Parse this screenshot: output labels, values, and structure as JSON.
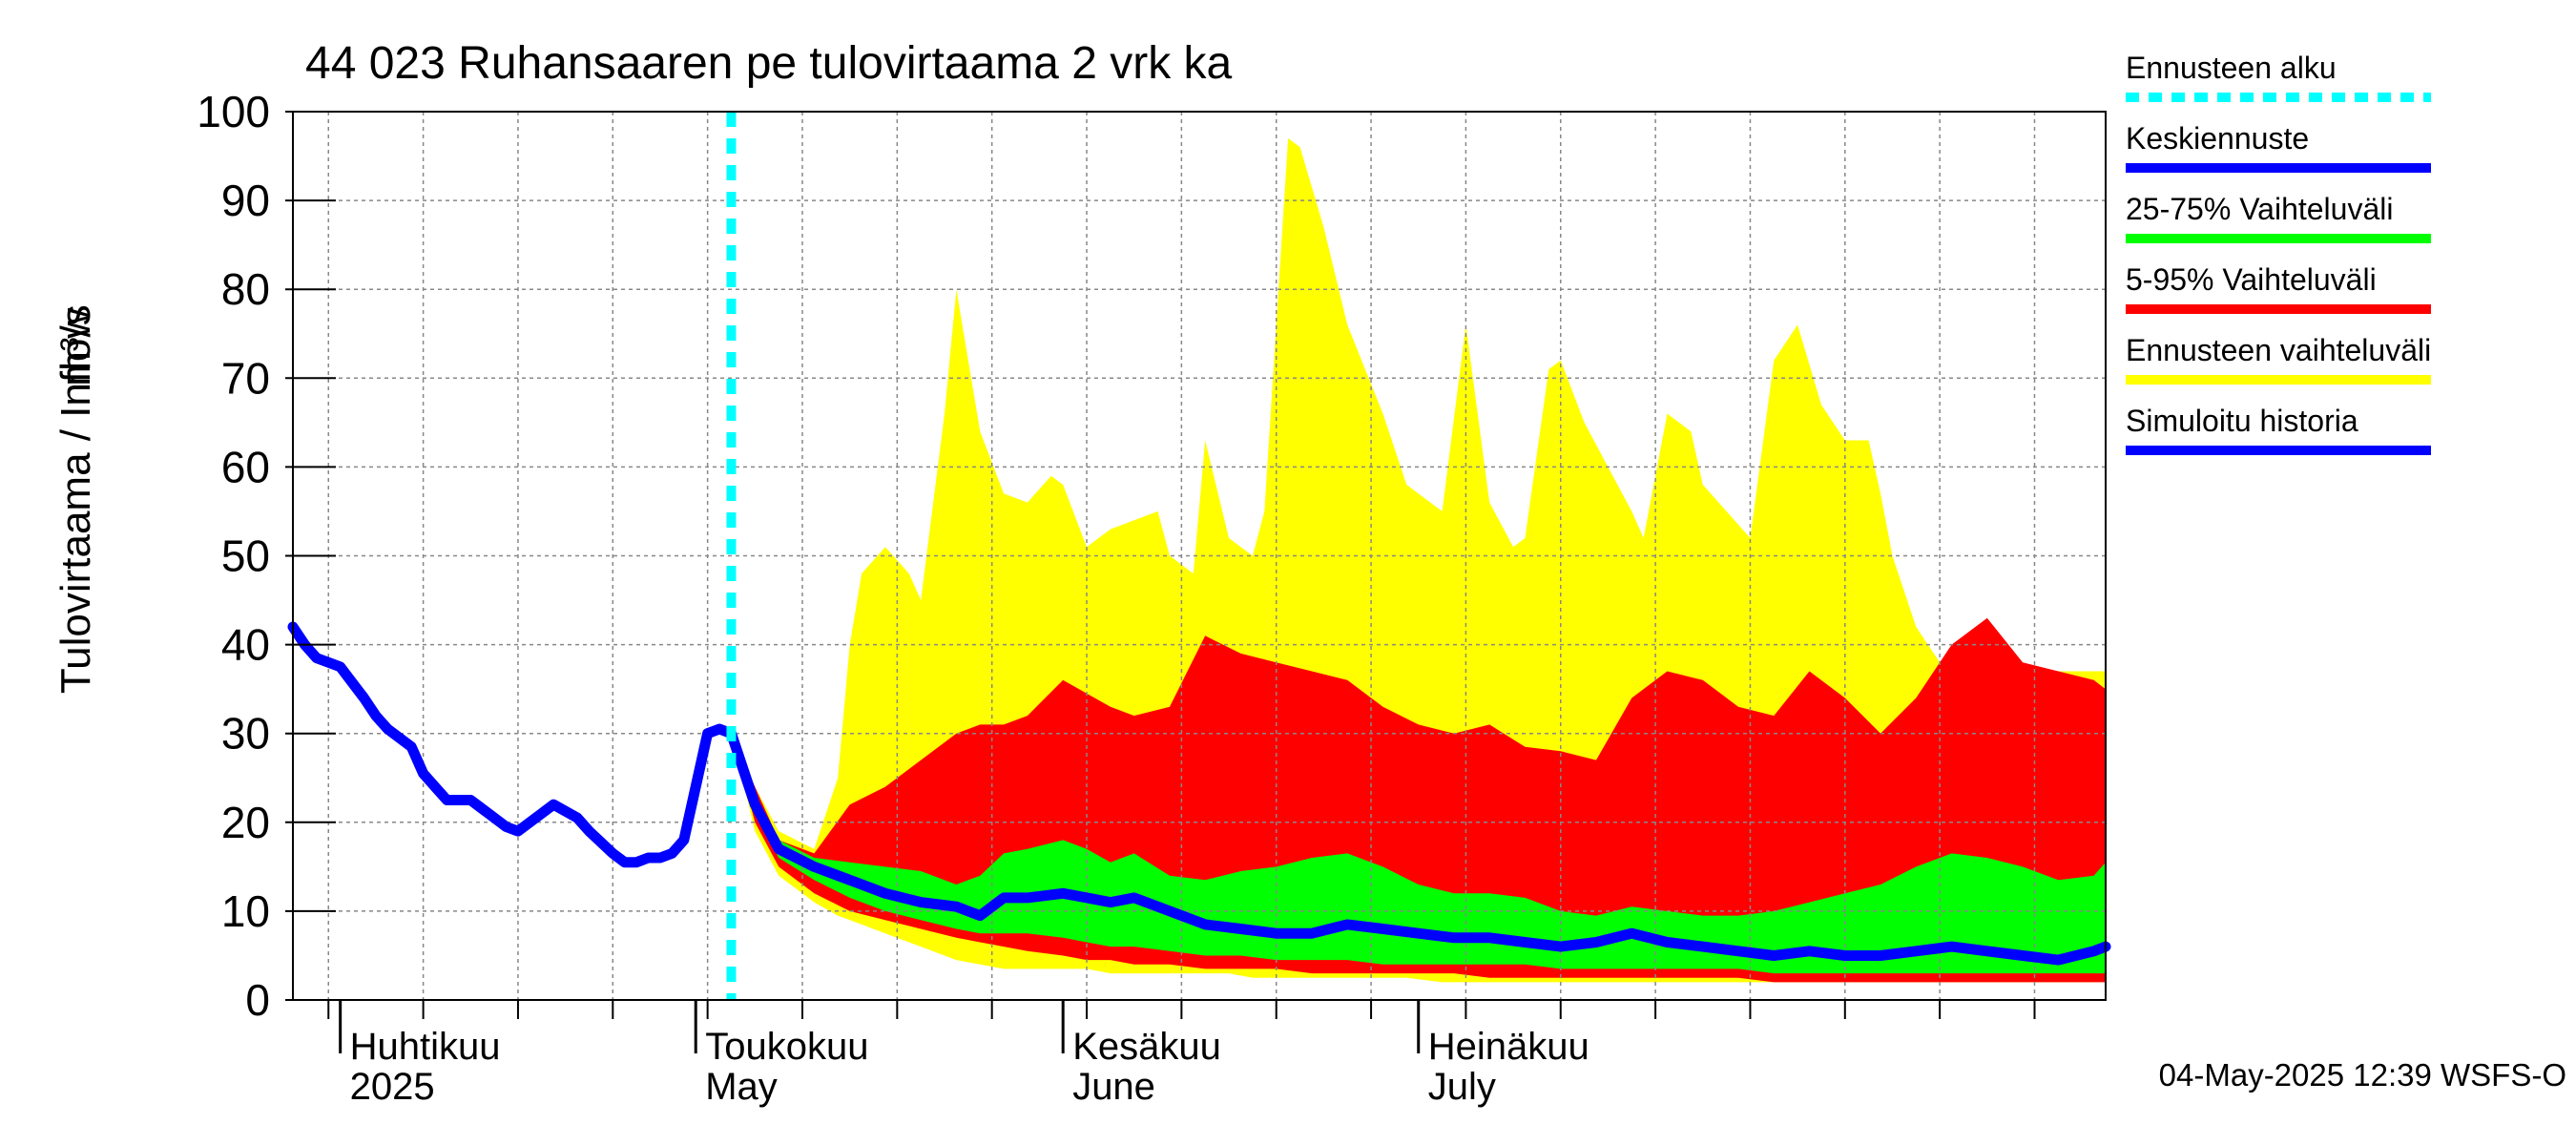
{
  "chart_data": {
    "type": "area",
    "title": "44 023 Ruhansaaren pe tulovirtaama 2 vrk ka",
    "ylabel": "Tulovirtaama / Inflow",
    "yunit": "m³/s",
    "ylim": [
      0,
      100
    ],
    "yticks": [
      0,
      10,
      20,
      30,
      40,
      50,
      60,
      70,
      80,
      90,
      100
    ],
    "xrange_days": [
      -34,
      119
    ],
    "x_note": "days since 2025-05-01",
    "forecast_start_day": 3,
    "grid": true,
    "legend_position": "right",
    "footer": "04-May-2025 12:39 WSFS-O",
    "month_labels": [
      {
        "day": -30,
        "top": "Huhtikuu",
        "bottom": "2025"
      },
      {
        "day": 0,
        "top": "Toukokuu",
        "bottom": "May"
      },
      {
        "day": 31,
        "top": "Kesäkuu",
        "bottom": "June"
      },
      {
        "day": 61,
        "top": "Heinäkuu",
        "bottom": "July"
      }
    ],
    "legend": [
      {
        "key": "start",
        "label": "Ennusteen alku",
        "color": "#00ffff",
        "dashed": true
      },
      {
        "key": "median",
        "label": "Keskiennuste",
        "color": "#0000ff"
      },
      {
        "key": "p25_75",
        "label": "25-75% Vaihteluväli",
        "color": "#00ff00"
      },
      {
        "key": "p5_95",
        "label": "5-95% Vaihteluväli",
        "color": "#ff0000"
      },
      {
        "key": "range",
        "label": "Ennusteen vaihteluväli",
        "color": "#ffff00"
      },
      {
        "key": "history",
        "label": "Simuloitu historia",
        "color": "#0000ff"
      }
    ],
    "series": {
      "history": {
        "x": [
          -34,
          -33,
          -32,
          -30,
          -28,
          -27,
          -26,
          -24,
          -23,
          -22,
          -21,
          -19,
          -18,
          -16,
          -15,
          -13,
          -12,
          -10,
          -9,
          -7,
          -6,
          -5,
          -4,
          -3,
          -2,
          -1,
          0,
          1,
          2,
          3
        ],
        "y": [
          42,
          40,
          38.5,
          37.5,
          34,
          32,
          30.5,
          28.5,
          25.5,
          24,
          22.5,
          22.5,
          21.5,
          19.5,
          19,
          21,
          22,
          20.5,
          19,
          16.5,
          15.5,
          15.5,
          16,
          16,
          16.5,
          18,
          24,
          30,
          30.5,
          30
        ]
      },
      "median": {
        "x": [
          3,
          5,
          7,
          10,
          13,
          16,
          19,
          22,
          24,
          26,
          28,
          31,
          33,
          35,
          37,
          40,
          43,
          46,
          49,
          52,
          55,
          58,
          61,
          64,
          67,
          70,
          73,
          76,
          79,
          82,
          85,
          88,
          91,
          94,
          97,
          100,
          103,
          106,
          109,
          112,
          115,
          118,
          119
        ],
        "y": [
          30,
          22,
          17,
          15,
          13.5,
          12,
          11,
          10.5,
          9.5,
          11.5,
          11.5,
          12,
          11.5,
          11,
          11.5,
          10,
          8.5,
          8,
          7.5,
          7.5,
          8.5,
          8,
          7.5,
          7,
          7,
          6.5,
          6,
          6.5,
          7.5,
          6.5,
          6,
          5.5,
          5,
          5.5,
          5,
          5,
          5.5,
          6,
          5.5,
          5,
          4.5,
          5.5,
          6
        ]
      },
      "p25_75": {
        "x": [
          3,
          5,
          7,
          10,
          13,
          16,
          19,
          22,
          24,
          26,
          28,
          31,
          33,
          35,
          37,
          40,
          43,
          46,
          49,
          52,
          55,
          58,
          61,
          64,
          67,
          70,
          73,
          76,
          79,
          82,
          85,
          88,
          91,
          94,
          97,
          100,
          103,
          106,
          109,
          112,
          115,
          118,
          119
        ],
        "lower": [
          30,
          21,
          16,
          13.5,
          11.5,
          10,
          9,
          8,
          7.5,
          7.5,
          7.5,
          7,
          6.5,
          6,
          6,
          5.5,
          5,
          5,
          4.5,
          4.5,
          4.5,
          4,
          4,
          4,
          4,
          4,
          3.5,
          3.5,
          3.5,
          3.5,
          3.5,
          3.5,
          3,
          3,
          3,
          3,
          3,
          3,
          3,
          3,
          3,
          3,
          3
        ],
        "upper": [
          30,
          23,
          18,
          16,
          15.5,
          15,
          14.5,
          13,
          14,
          16.5,
          17,
          18,
          17,
          15.5,
          16.5,
          14,
          13.5,
          14.5,
          15,
          16,
          16.5,
          15,
          13,
          12,
          12,
          11.5,
          10,
          9.5,
          10.5,
          10,
          9.5,
          9.5,
          10,
          11,
          12,
          13,
          15,
          16.5,
          16,
          15,
          13.5,
          14,
          15.5
        ]
      },
      "p5_95": {
        "x": [
          3,
          5,
          7,
          10,
          13,
          16,
          19,
          22,
          24,
          26,
          28,
          31,
          33,
          35,
          37,
          40,
          43,
          46,
          49,
          52,
          55,
          58,
          61,
          64,
          67,
          70,
          73,
          76,
          79,
          82,
          85,
          88,
          91,
          94,
          97,
          100,
          103,
          106,
          109,
          112,
          115,
          118,
          119
        ],
        "lower": [
          30,
          20,
          15,
          12,
          10,
          9,
          8,
          7,
          6.5,
          6,
          5.5,
          5,
          4.5,
          4.5,
          4,
          4,
          3.5,
          3.5,
          3.5,
          3,
          3,
          3,
          3,
          3,
          2.5,
          2.5,
          2.5,
          2.5,
          2.5,
          2.5,
          2.5,
          2.5,
          2,
          2,
          2,
          2,
          2,
          2,
          2,
          2,
          2,
          2,
          2
        ],
        "upper": [
          30,
          24,
          18,
          16.5,
          22,
          24,
          27,
          30,
          31,
          31,
          32,
          36,
          34.5,
          33,
          32,
          33,
          41,
          39,
          38,
          37,
          36,
          33,
          31,
          30,
          31,
          28.5,
          28,
          27,
          34,
          37,
          36,
          33,
          32,
          37,
          34,
          30,
          34,
          40,
          43,
          38,
          37,
          36,
          35
        ]
      },
      "range": {
        "x": [
          3,
          5,
          7,
          10,
          12,
          13,
          14,
          16,
          18,
          19,
          21,
          22,
          24,
          26,
          28,
          30,
          31,
          33,
          35,
          37,
          39,
          40,
          42,
          43,
          45,
          47,
          48,
          50,
          51,
          53,
          55,
          58,
          60,
          63,
          65,
          67,
          69,
          70,
          72,
          73,
          75,
          77,
          79,
          80,
          82,
          84,
          85,
          87,
          89,
          91,
          93,
          95,
          97,
          99,
          100,
          101,
          103,
          105,
          106,
          108,
          110,
          112,
          114,
          116,
          118,
          119
        ],
        "lower": [
          30,
          19,
          14,
          11,
          9.5,
          9,
          8.5,
          7.5,
          6.5,
          6,
          5,
          4.5,
          4,
          3.5,
          3.5,
          3.5,
          3.5,
          3.5,
          3,
          3,
          3,
          3,
          3,
          3,
          3,
          2.5,
          2.5,
          2.5,
          2.5,
          2.5,
          2.5,
          2.5,
          2.5,
          2,
          2,
          2,
          2,
          2,
          2,
          2,
          2,
          2,
          2,
          2,
          2,
          2,
          2,
          2,
          2,
          2,
          2,
          2,
          2,
          2,
          2,
          2,
          2,
          2,
          2,
          2,
          2,
          2,
          2,
          2,
          2,
          2
        ],
        "upper": [
          30,
          24,
          19,
          17,
          25,
          40,
          48,
          51,
          48,
          45,
          66,
          80,
          64,
          57,
          56,
          59,
          58,
          51,
          53,
          54,
          55,
          50,
          48,
          63,
          52,
          50,
          55,
          97,
          96,
          87,
          76,
          66,
          58,
          55,
          76,
          56,
          51,
          52,
          71,
          72,
          65,
          60,
          55,
          52,
          66,
          64,
          58,
          55,
          52,
          72,
          76,
          67,
          63,
          63,
          57,
          50,
          42,
          38,
          37,
          37,
          37,
          37,
          37,
          37,
          37,
          37
        ]
      }
    }
  }
}
